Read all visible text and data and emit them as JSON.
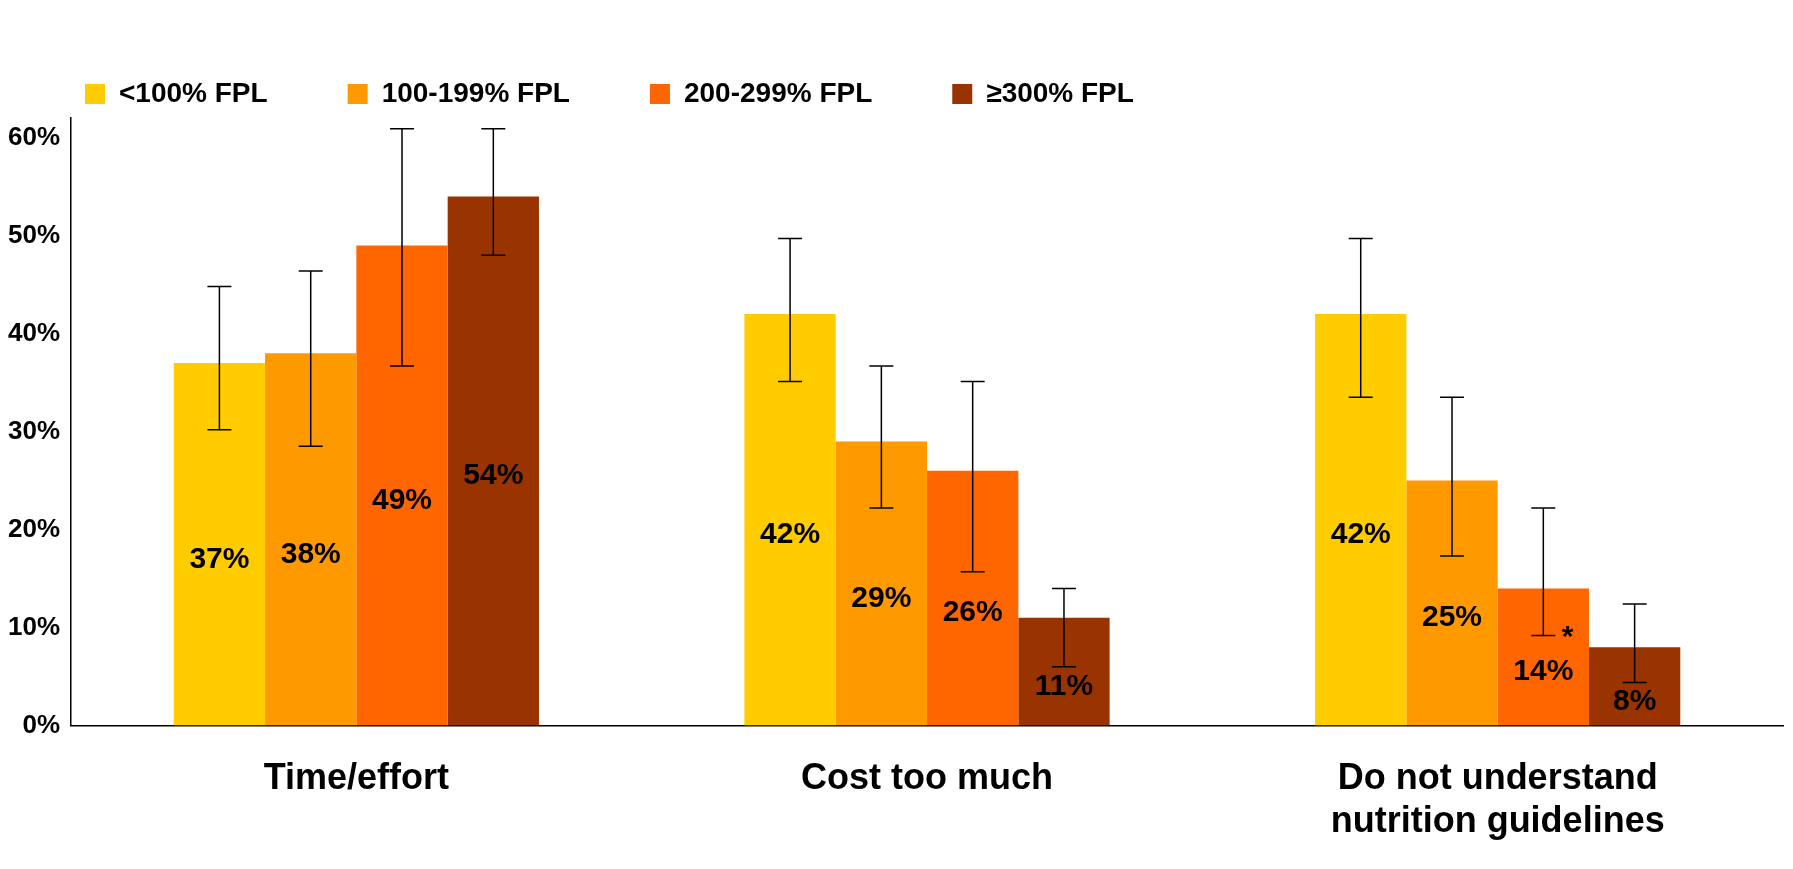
{
  "chart_data": {
    "type": "bar",
    "categories": [
      "Time/effort",
      "Cost too much",
      "Do not understand nutrition guidelines"
    ],
    "series": [
      {
        "name": "<100% FPL",
        "color": "#ffcc00",
        "values": [
          37,
          42,
          42
        ],
        "value_labels": [
          "37%",
          "42%",
          "42%"
        ],
        "errors": [
          [
            30.2,
            44.8
          ],
          [
            35.1,
            49.7
          ],
          [
            33.5,
            49.7
          ]
        ]
      },
      {
        "name": "100-199% FPL",
        "color": "#ff9900",
        "values": [
          38,
          29,
          25
        ],
        "value_labels": [
          "38%",
          "29%",
          "25%"
        ],
        "errors": [
          [
            28.5,
            46.4
          ],
          [
            22.2,
            36.7
          ],
          [
            17.3,
            33.5
          ]
        ]
      },
      {
        "name": "200-299% FPL",
        "color": "#ff6600",
        "values": [
          49,
          26,
          14
        ],
        "value_labels": [
          "49%",
          "26%",
          "14%"
        ],
        "errors": [
          [
            36.7,
            60.9
          ],
          [
            15.7,
            35.1
          ],
          [
            9.2,
            22.2
          ]
        ]
      },
      {
        "name": "≥300% FPL",
        "color": "#993300",
        "values": [
          54,
          11,
          8
        ],
        "value_labels": [
          "54%",
          "11%",
          "8%"
        ],
        "errors": [
          [
            48,
            60.9
          ],
          [
            6,
            14
          ],
          [
            4.4,
            12.4
          ]
        ]
      }
    ],
    "ylim": [
      0,
      62
    ],
    "yticks": [
      {
        "value": 0,
        "label": "0%"
      },
      {
        "value": 10,
        "label": "10%"
      },
      {
        "value": 20,
        "label": "20%"
      },
      {
        "value": 30,
        "label": "30%"
      },
      {
        "value": 40,
        "label": "40%"
      },
      {
        "value": 50,
        "label": "50%"
      },
      {
        "value": 60,
        "label": "60%"
      }
    ],
    "legend": "top",
    "grid": false,
    "annotations": [
      {
        "text": "*",
        "x": "Do not understand nutrition guidelines",
        "y": 9
      }
    ]
  }
}
